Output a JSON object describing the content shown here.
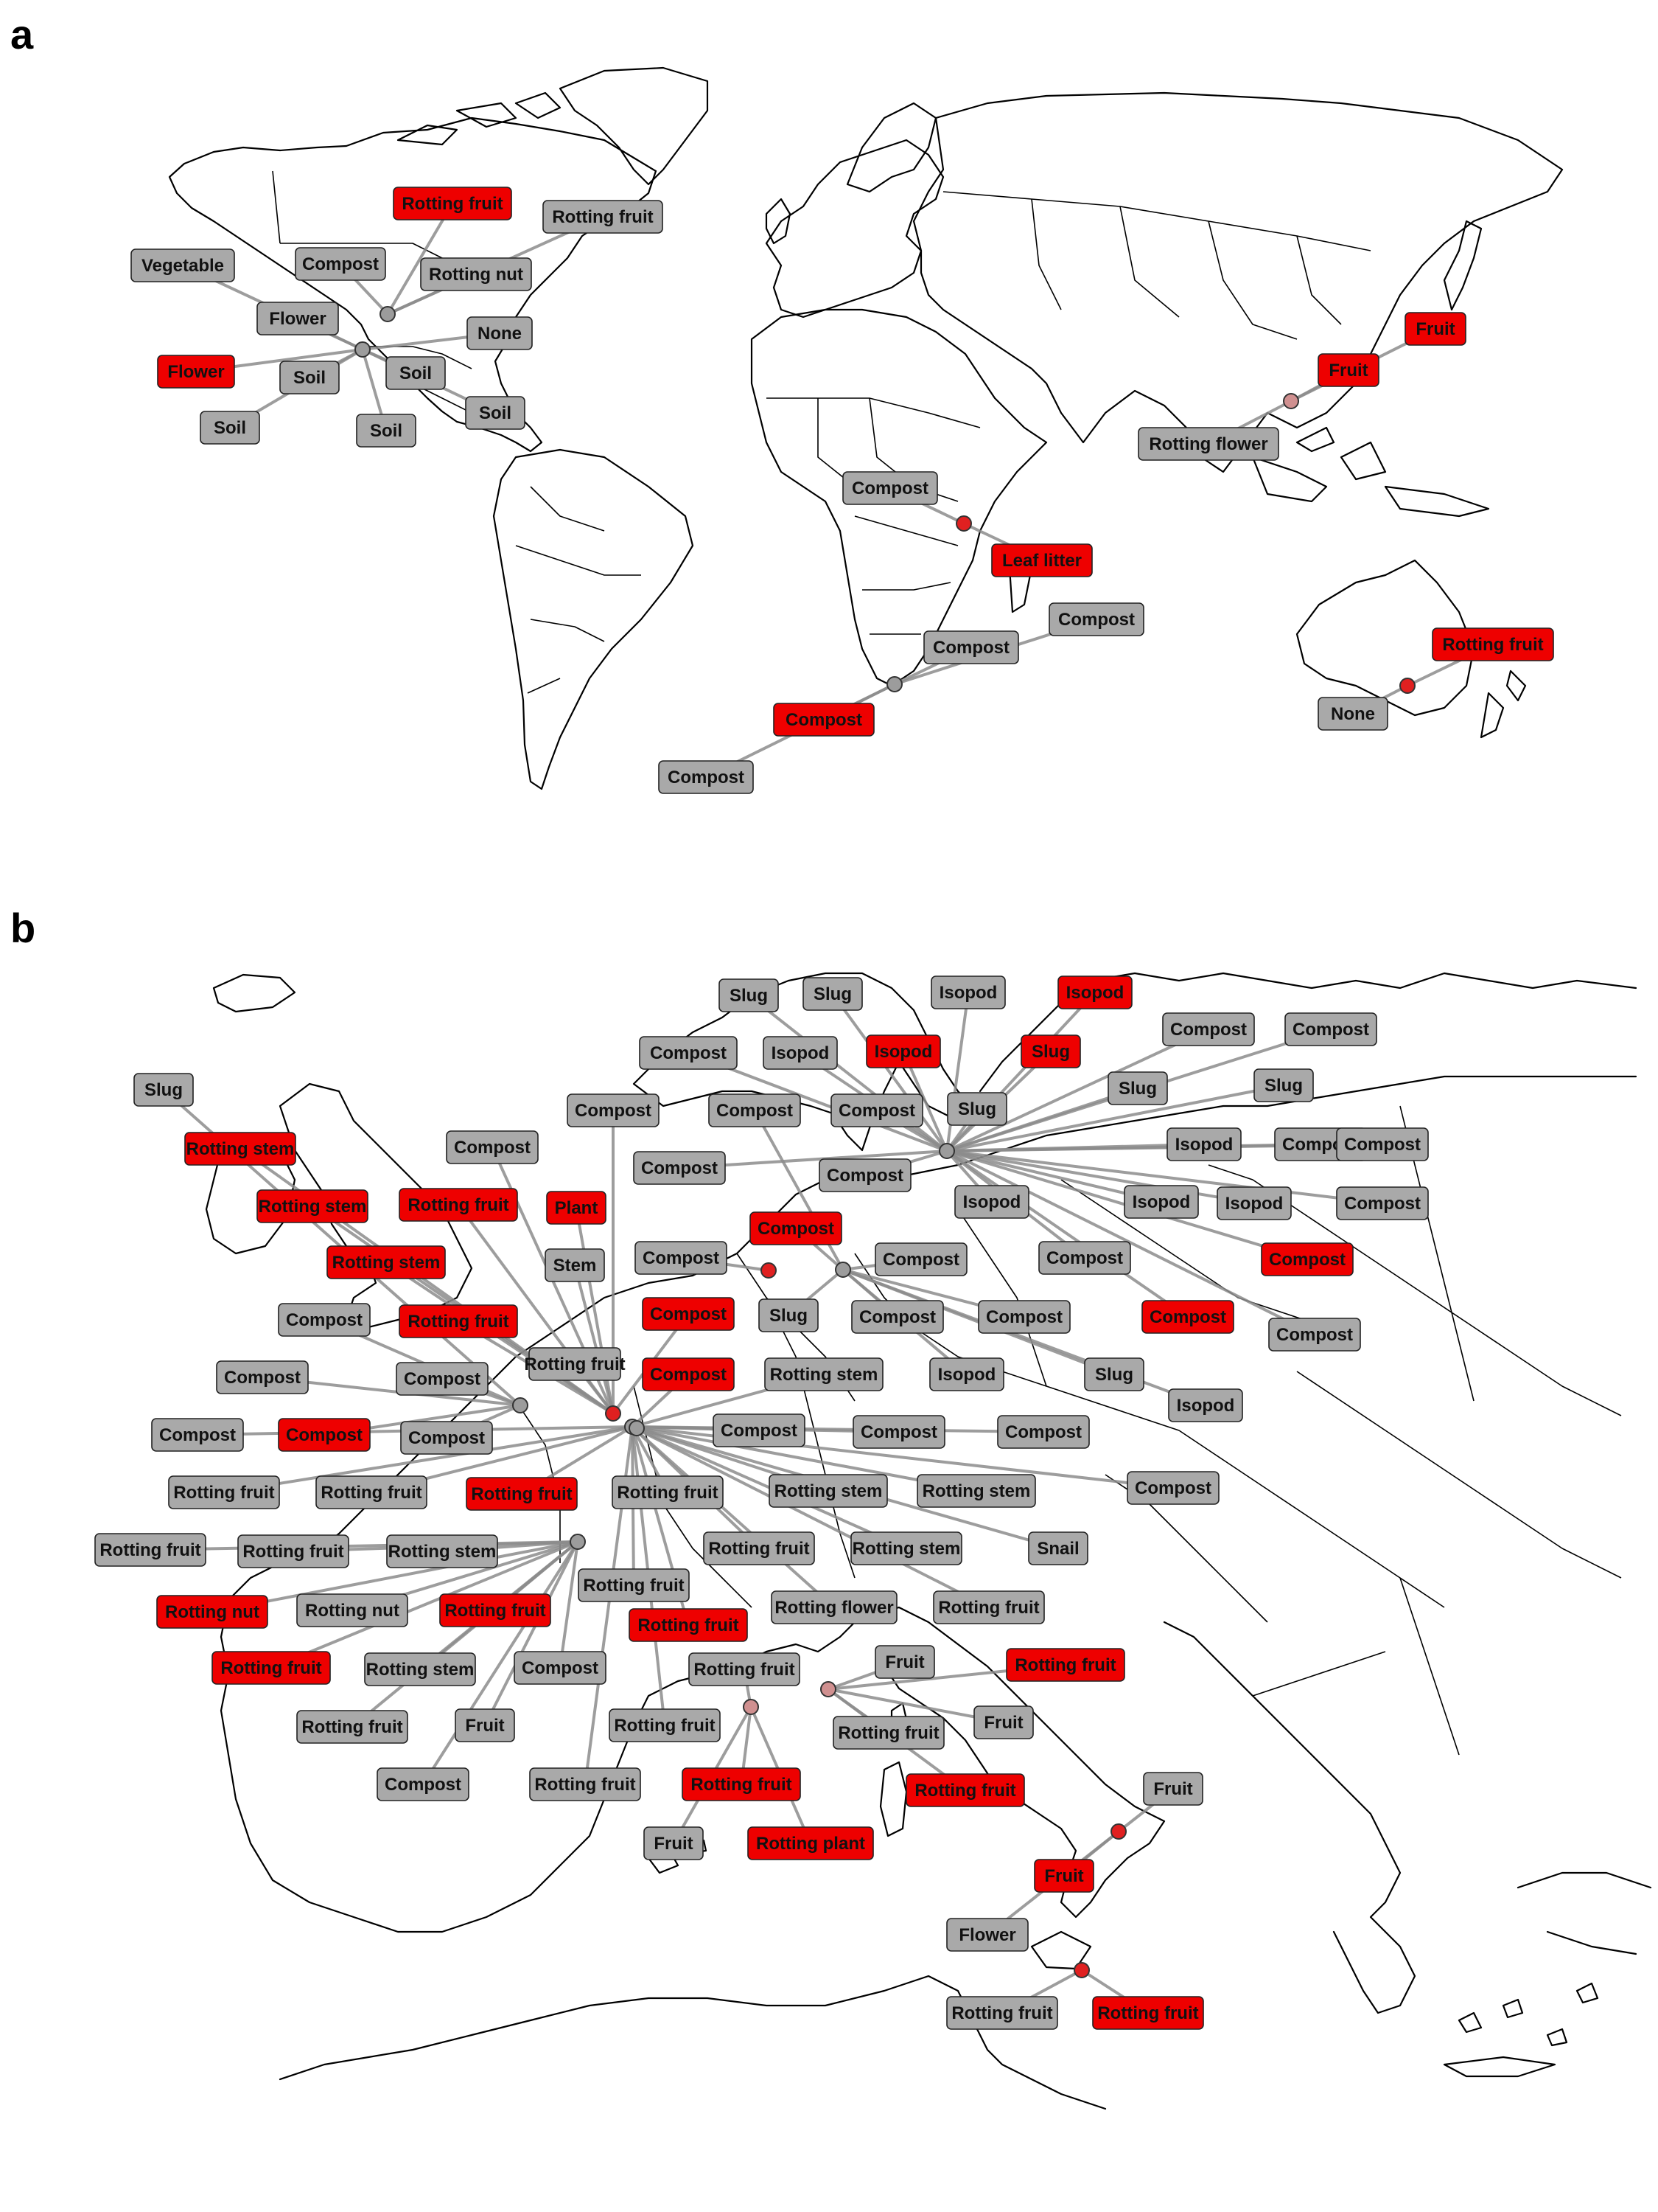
{
  "colors": {
    "red": "#ee0000",
    "grey": "#a9a9a9",
    "point_grey": "#9c9c9c",
    "point_red": "#e02020",
    "point_pink": "#d09090",
    "leader": "#8c8c8c"
  },
  "panels": [
    {
      "letter": "a",
      "points": [
        {
          "id": "na1",
          "color": "point_grey"
        },
        {
          "id": "na2",
          "color": "point_grey"
        },
        {
          "id": "asia",
          "color": "point_pink"
        },
        {
          "id": "kenya",
          "color": "point_red"
        },
        {
          "id": "safr",
          "color": "point_grey"
        },
        {
          "id": "aus",
          "color": "point_red"
        }
      ],
      "labels": [
        {
          "text": "Rotting fruit",
          "color": "red",
          "from": "na1"
        },
        {
          "text": "Rotting fruit",
          "color": "grey",
          "from": "na1"
        },
        {
          "text": "Vegetable",
          "color": "grey",
          "from": "na2"
        },
        {
          "text": "Compost",
          "color": "grey",
          "from": "na1"
        },
        {
          "text": "Rotting nut",
          "color": "grey",
          "from": "na1"
        },
        {
          "text": "Flower",
          "color": "grey",
          "from": "na2"
        },
        {
          "text": "None",
          "color": "grey",
          "from": "na2"
        },
        {
          "text": "Flower",
          "color": "red",
          "from": "na2"
        },
        {
          "text": "Soil",
          "color": "grey",
          "from": "na2"
        },
        {
          "text": "Soil",
          "color": "grey",
          "from": "na2"
        },
        {
          "text": "Soil",
          "color": "grey",
          "from": "na2"
        },
        {
          "text": "Soil",
          "color": "grey",
          "from": "na2"
        },
        {
          "text": "Soil",
          "color": "grey",
          "from": "na2"
        },
        {
          "text": "Fruit",
          "color": "red",
          "from": "asia"
        },
        {
          "text": "Fruit",
          "color": "red",
          "from": "asia"
        },
        {
          "text": "Rotting flower",
          "color": "grey",
          "from": "asia"
        },
        {
          "text": "Compost",
          "color": "grey",
          "from": "kenya"
        },
        {
          "text": "Leaf litter",
          "color": "red",
          "from": "kenya"
        },
        {
          "text": "Compost",
          "color": "grey",
          "from": "safr"
        },
        {
          "text": "Compost",
          "color": "grey",
          "from": "safr"
        },
        {
          "text": "Compost",
          "color": "red",
          "from": "safr"
        },
        {
          "text": "Compost",
          "color": "grey",
          "from": "safr"
        },
        {
          "text": "Rotting fruit",
          "color": "red",
          "from": "aus"
        },
        {
          "text": "None",
          "color": "grey",
          "from": "aus"
        }
      ]
    },
    {
      "letter": "b",
      "points": [
        {
          "id": "dk",
          "color": "point_grey"
        },
        {
          "id": "nl",
          "color": "point_red"
        },
        {
          "id": "de",
          "color": "point_grey"
        },
        {
          "id": "lon",
          "color": "point_grey"
        },
        {
          "id": "par",
          "color": "point_red"
        },
        {
          "id": "fr",
          "color": "point_grey"
        },
        {
          "id": "fr2",
          "color": "point_grey"
        },
        {
          "id": "sw",
          "color": "point_grey"
        },
        {
          "id": "med1",
          "color": "point_pink"
        },
        {
          "id": "med2",
          "color": "point_pink"
        },
        {
          "id": "it",
          "color": "point_red"
        },
        {
          "id": "sic",
          "color": "point_red"
        }
      ],
      "labels": [
        {
          "text": "Slug",
          "color": "grey",
          "from": "dk"
        },
        {
          "text": "Slug",
          "color": "grey",
          "from": "dk"
        },
        {
          "text": "Isopod",
          "color": "grey",
          "from": "dk"
        },
        {
          "text": "Isopod",
          "color": "red",
          "from": "dk"
        },
        {
          "text": "Compost",
          "color": "grey",
          "from": "dk"
        },
        {
          "text": "Compost",
          "color": "grey",
          "from": "dk"
        },
        {
          "text": "Compost",
          "color": "grey",
          "from": "dk"
        },
        {
          "text": "Isopod",
          "color": "grey",
          "from": "dk"
        },
        {
          "text": "Isopod",
          "color": "red",
          "from": "dk"
        },
        {
          "text": "Slug",
          "color": "red",
          "from": "dk"
        },
        {
          "text": "Slug",
          "color": "grey",
          "from": "dk"
        },
        {
          "text": "Slug",
          "color": "grey",
          "from": "dk"
        },
        {
          "text": "Slug",
          "color": "grey",
          "from": "lon"
        },
        {
          "text": "Compost",
          "color": "grey",
          "from": "par"
        },
        {
          "text": "Compost",
          "color": "grey",
          "from": "de"
        },
        {
          "text": "Compost",
          "color": "grey",
          "from": "dk"
        },
        {
          "text": "Slug",
          "color": "grey",
          "from": "dk"
        },
        {
          "text": "Rotting stem",
          "color": "red",
          "from": "par"
        },
        {
          "text": "Compost",
          "color": "grey",
          "from": "par"
        },
        {
          "text": "Compost",
          "color": "grey",
          "from": "dk"
        },
        {
          "text": "Compost",
          "color": "grey",
          "from": "dk"
        },
        {
          "text": "Isopod",
          "color": "grey",
          "from": "dk"
        },
        {
          "text": "Compost",
          "color": "grey",
          "from": "dk"
        },
        {
          "text": "Compost",
          "color": "grey",
          "from": "dk"
        },
        {
          "text": "Rotting stem",
          "color": "red",
          "from": "par"
        },
        {
          "text": "Rotting fruit",
          "color": "red",
          "from": "par"
        },
        {
          "text": "Plant",
          "color": "red",
          "from": "par"
        },
        {
          "text": "Compost",
          "color": "red",
          "from": "de"
        },
        {
          "text": "Isopod",
          "color": "grey",
          "from": "dk"
        },
        {
          "text": "Isopod",
          "color": "grey",
          "from": "dk"
        },
        {
          "text": "Isopod",
          "color": "grey",
          "from": "dk"
        },
        {
          "text": "Compost",
          "color": "grey",
          "from": "dk"
        },
        {
          "text": "Stem",
          "color": "grey",
          "from": "par"
        },
        {
          "text": "Compost",
          "color": "grey",
          "from": "nl"
        },
        {
          "text": "Compost",
          "color": "grey",
          "from": "de"
        },
        {
          "text": "Compost",
          "color": "grey",
          "from": "dk"
        },
        {
          "text": "Compost",
          "color": "red",
          "from": "dk"
        },
        {
          "text": "Rotting stem",
          "color": "red",
          "from": "par"
        },
        {
          "text": "Compost",
          "color": "red",
          "from": "par"
        },
        {
          "text": "Slug",
          "color": "grey",
          "from": "de"
        },
        {
          "text": "Compost",
          "color": "grey",
          "from": "de"
        },
        {
          "text": "Compost",
          "color": "grey",
          "from": "de"
        },
        {
          "text": "Compost",
          "color": "red",
          "from": "dk"
        },
        {
          "text": "Compost",
          "color": "grey",
          "from": "dk"
        },
        {
          "text": "Compost",
          "color": "grey",
          "from": "lon"
        },
        {
          "text": "Rotting fruit",
          "color": "red",
          "from": "par"
        },
        {
          "text": "Rotting fruit",
          "color": "grey",
          "from": "par"
        },
        {
          "text": "Compost",
          "color": "red",
          "from": "fr"
        },
        {
          "text": "Rotting stem",
          "color": "grey",
          "from": "fr"
        },
        {
          "text": "Isopod",
          "color": "grey",
          "from": "de"
        },
        {
          "text": "Slug",
          "color": "grey",
          "from": "de"
        },
        {
          "text": "Compost",
          "color": "grey",
          "from": "lon"
        },
        {
          "text": "Compost",
          "color": "grey",
          "from": "lon"
        },
        {
          "text": "Isopod",
          "color": "grey",
          "from": "de"
        },
        {
          "text": "Compost",
          "color": "grey",
          "from": "fr"
        },
        {
          "text": "Compost",
          "color": "red",
          "from": "lon"
        },
        {
          "text": "Compost",
          "color": "grey",
          "from": "lon"
        },
        {
          "text": "Compost",
          "color": "grey",
          "from": "fr"
        },
        {
          "text": "Compost",
          "color": "grey",
          "from": "fr"
        },
        {
          "text": "Compost",
          "color": "grey",
          "from": "fr"
        },
        {
          "text": "Rotting fruit",
          "color": "grey",
          "from": "fr"
        },
        {
          "text": "Rotting fruit",
          "color": "grey",
          "from": "fr"
        },
        {
          "text": "Rotting fruit",
          "color": "red",
          "from": "fr"
        },
        {
          "text": "Rotting fruit",
          "color": "grey",
          "from": "fr"
        },
        {
          "text": "Rotting stem",
          "color": "grey",
          "from": "fr"
        },
        {
          "text": "Rotting stem",
          "color": "grey",
          "from": "fr"
        },
        {
          "text": "Compost",
          "color": "grey",
          "from": "fr"
        },
        {
          "text": "Rotting fruit",
          "color": "grey",
          "from": "sw"
        },
        {
          "text": "Rotting fruit",
          "color": "grey",
          "from": "sw"
        },
        {
          "text": "Rotting stem",
          "color": "grey",
          "from": "sw"
        },
        {
          "text": "Rotting fruit",
          "color": "grey",
          "from": "fr"
        },
        {
          "text": "Rotting stem",
          "color": "grey",
          "from": "fr"
        },
        {
          "text": "Snail",
          "color": "grey",
          "from": "fr"
        },
        {
          "text": "Rotting fruit",
          "color": "grey",
          "from": "fr"
        },
        {
          "text": "Rotting nut",
          "color": "red",
          "from": "sw"
        },
        {
          "text": "Rotting nut",
          "color": "grey",
          "from": "sw"
        },
        {
          "text": "Rotting fruit",
          "color": "red",
          "from": "sw"
        },
        {
          "text": "Rotting fruit",
          "color": "red",
          "from": "fr"
        },
        {
          "text": "Rotting flower",
          "color": "grey",
          "from": "fr"
        },
        {
          "text": "Rotting fruit",
          "color": "grey",
          "from": "fr"
        },
        {
          "text": "Rotting fruit",
          "color": "red",
          "from": "sw"
        },
        {
          "text": "Rotting stem",
          "color": "grey",
          "from": "sw"
        },
        {
          "text": "Compost",
          "color": "grey",
          "from": "sw"
        },
        {
          "text": "Rotting fruit",
          "color": "grey",
          "from": "med1"
        },
        {
          "text": "Fruit",
          "color": "grey",
          "from": "med2"
        },
        {
          "text": "Rotting fruit",
          "color": "red",
          "from": "med2"
        },
        {
          "text": "Rotting fruit",
          "color": "grey",
          "from": "sw"
        },
        {
          "text": "Fruit",
          "color": "grey",
          "from": "sw"
        },
        {
          "text": "Rotting fruit",
          "color": "grey",
          "from": "fr"
        },
        {
          "text": "Rotting fruit",
          "color": "grey",
          "from": "med2"
        },
        {
          "text": "Fruit",
          "color": "grey",
          "from": "med2"
        },
        {
          "text": "Compost",
          "color": "grey",
          "from": "sw"
        },
        {
          "text": "Rotting fruit",
          "color": "grey",
          "from": "fr"
        },
        {
          "text": "Rotting fruit",
          "color": "red",
          "from": "med1"
        },
        {
          "text": "Rotting fruit",
          "color": "red",
          "from": "med2"
        },
        {
          "text": "Fruit",
          "color": "grey",
          "from": "it"
        },
        {
          "text": "Fruit",
          "color": "grey",
          "from": "med1"
        },
        {
          "text": "Rotting plant",
          "color": "red",
          "from": "med1"
        },
        {
          "text": "Fruit",
          "color": "red",
          "from": "it"
        },
        {
          "text": "Flower",
          "color": "grey",
          "from": "it"
        },
        {
          "text": "Rotting fruit",
          "color": "grey",
          "from": "sic"
        },
        {
          "text": "Rotting fruit",
          "color": "red",
          "from": "sic"
        }
      ]
    }
  ]
}
